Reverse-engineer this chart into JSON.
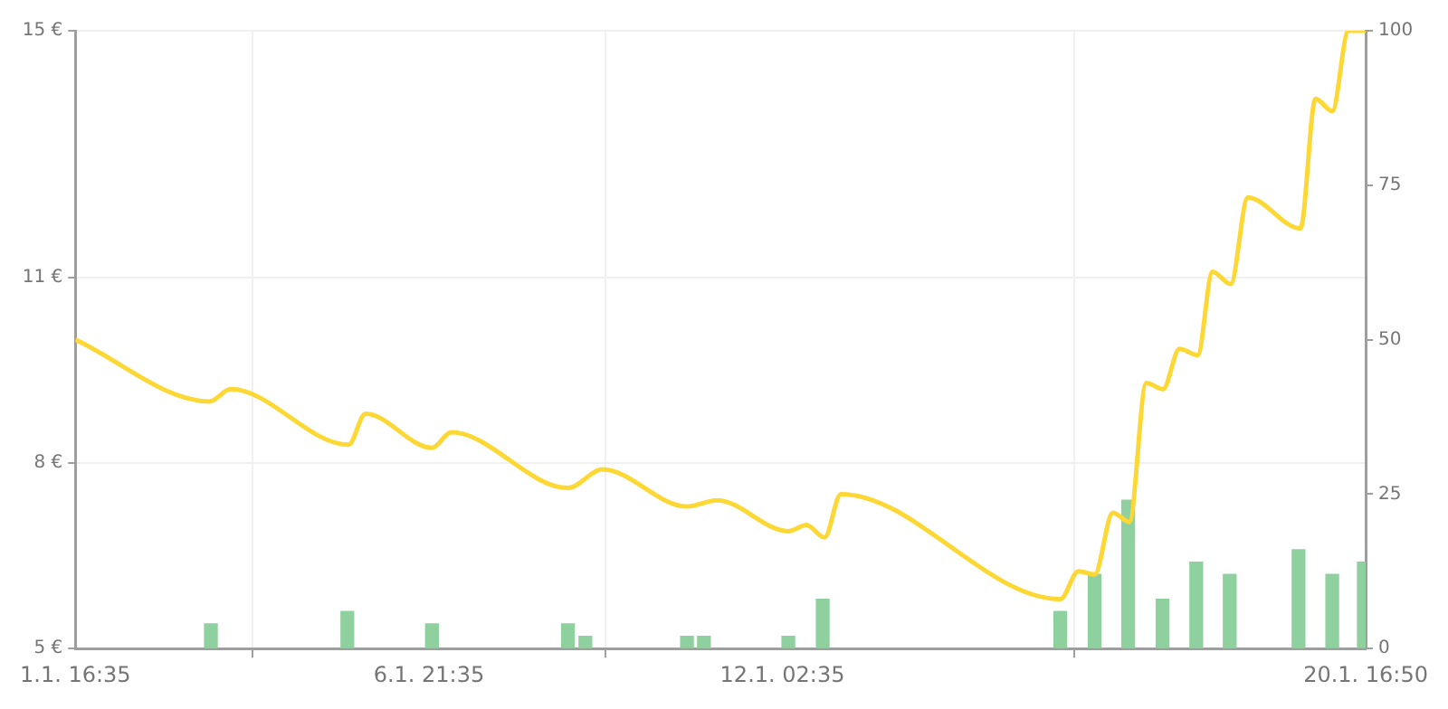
{
  "chart_data": {
    "type": "line",
    "xlim": [
      "--01-01T16:35",
      "--01-20T16:50"
    ],
    "xticks": [
      {
        "value": "--01-01T16:35",
        "label": "1.1. 16:35"
      },
      {
        "value": "--01-06T21:35",
        "label": "6.1. 21:35"
      },
      {
        "value": "--01-12T02:35",
        "label": "12.1. 02:35"
      },
      {
        "value": "--01-20T16:50",
        "label": "20.1. 16:50"
      }
    ],
    "ylim": [
      5,
      15
    ],
    "yticks": [
      {
        "value": 5,
        "label": "5 €"
      },
      {
        "value": 8,
        "label": "8 €"
      },
      {
        "value": 11,
        "label": "11 €"
      },
      {
        "value": 15,
        "label": "15 €"
      }
    ],
    "y2lim": [
      0,
      100
    ],
    "y2ticks": [
      0,
      25,
      50,
      75,
      100
    ],
    "grid": true,
    "legend": false,
    "marker": "none",
    "line_style": "solid",
    "series": [
      {
        "color": "#fdd835",
        "x": [
          "--01-01T16:35",
          "--01-03T16:00",
          "--01-03T23:30",
          "--01-05T17:10",
          "--01-05T23:10",
          "--01-06T22:40",
          "--01-07T05:30",
          "--01-08T22:45",
          "--01-09T10:55",
          "--01-10T16:50",
          "--01-11T03:30",
          "--01-12T04:40",
          "--01-12T11:05",
          "--01-12T17:30",
          "--01-12T23:15",
          "--01-16T04:50",
          "--01-16T11:15",
          "--01-16T17:00",
          "--01-16T23:25",
          "--01-17T05:15",
          "--01-17T11:15",
          "--01-17T17:10",
          "--01-17T23:00",
          "--01-18T05:25",
          "--01-18T10:40",
          "--01-18T17:05",
          "--01-18T23:10",
          "--01-19T17:45",
          "--01-19T23:05",
          "--01-20T05:00",
          "--01-20T10:45",
          "--01-20T16:50"
        ],
        "values": [
          10.0,
          9.0,
          9.2,
          8.3,
          8.8,
          8.25,
          8.5,
          7.6,
          7.9,
          7.3,
          7.4,
          6.9,
          7.0,
          6.8,
          7.5,
          5.8,
          6.25,
          6.2,
          7.2,
          7.05,
          9.3,
          9.2,
          9.85,
          9.75,
          11.1,
          10.9,
          12.3,
          11.8,
          13.9,
          13.7,
          15,
          15
        ]
      },
      {
        "type": "bar",
        "axis": "y2",
        "color": "#8fd19e",
        "x": [
          "--01-03T16:30",
          "--01-05T16:45",
          "--01-06T22:40",
          "--01-08T22:45",
          "--01-09T04:55",
          "--01-10T16:50",
          "--01-10T22:50",
          "--01-12T04:40",
          "--01-12T16:50",
          "--01-16T04:50",
          "--01-16T17:00",
          "--01-17T04:50",
          "--01-17T17:00",
          "--01-18T04:55",
          "--01-18T16:45",
          "--01-19T17:05",
          "--01-20T05:00",
          "--01-20T16:10"
        ],
        "values": [
          4,
          6,
          4,
          4,
          2,
          2,
          2,
          2,
          8,
          6,
          12,
          24,
          8,
          14,
          12,
          16,
          12,
          14
        ]
      }
    ]
  }
}
